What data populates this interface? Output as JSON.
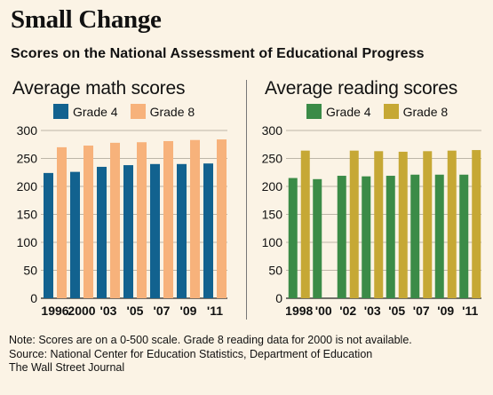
{
  "title": "Small Change",
  "subtitle": "Scores on the National Assessment of Educational Progress",
  "notes": [
    "Note: Scores are on a 0-500 scale. Grade 8 reading data for 2000 is not available.",
    "Source: National Center for Education Statistics, Department of Education",
    "The Wall Street Journal"
  ],
  "chart_data": [
    {
      "type": "bar",
      "title": "Average math scores",
      "categories": [
        "1996",
        "2000",
        "'03",
        "'05",
        "'07",
        "'09",
        "'11"
      ],
      "series": [
        {
          "name": "Grade 4",
          "color": "#12628f",
          "values": [
            224,
            226,
            235,
            238,
            240,
            240,
            241
          ]
        },
        {
          "name": "Grade 8",
          "color": "#f7b27b",
          "values": [
            270,
            273,
            278,
            279,
            281,
            283,
            284
          ]
        }
      ],
      "ylim": [
        0,
        300
      ],
      "yticks": [
        0,
        50,
        100,
        150,
        200,
        250,
        300
      ],
      "grid": true
    },
    {
      "type": "bar",
      "title": "Average reading scores",
      "categories": [
        "1998",
        "'00",
        "'02",
        "'03",
        "'05",
        "'07",
        "'09",
        "'11"
      ],
      "series": [
        {
          "name": "Grade 4",
          "color": "#3b8b47",
          "values": [
            215,
            213,
            219,
            218,
            219,
            221,
            221,
            221
          ]
        },
        {
          "name": "Grade 8",
          "color": "#c6a835",
          "values": [
            264,
            null,
            264,
            263,
            262,
            263,
            264,
            265
          ]
        }
      ],
      "ylim": [
        0,
        300
      ],
      "yticks": [
        0,
        50,
        100,
        150,
        200,
        250,
        300
      ],
      "grid": true
    }
  ]
}
